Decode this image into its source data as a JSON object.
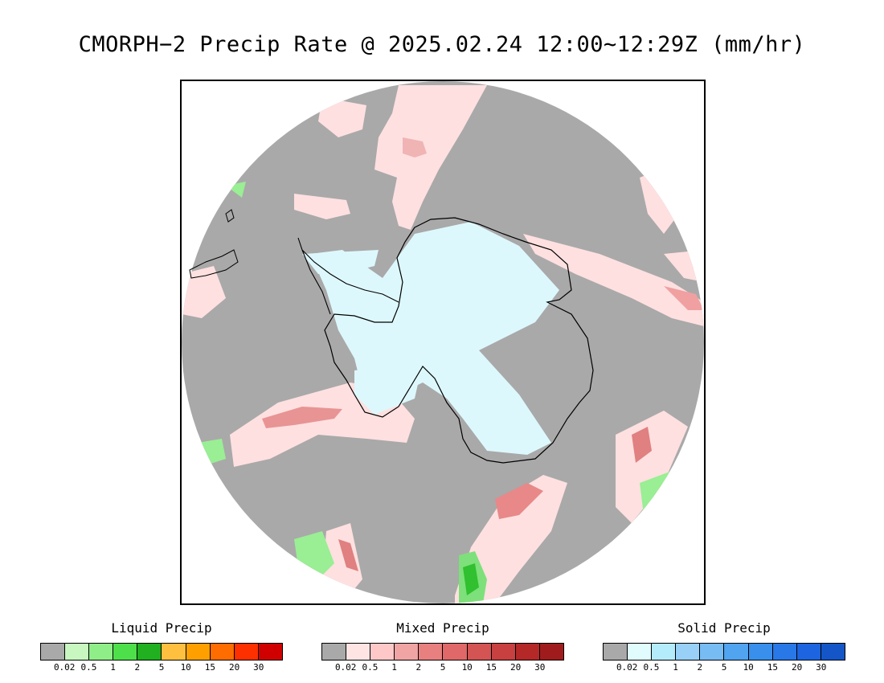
{
  "title": "CMORPH−2 Precip Rate @ 2025.02.24 12:00∼12:29Z (mm/hr)",
  "map": {
    "projection": "south polar stereographic",
    "background_color": "#a9a9a9",
    "coastline_color": "#000000"
  },
  "legends": [
    {
      "title": "Liquid Precip",
      "colors": [
        "#a9a9a9",
        "#c8f8c0",
        "#90ee88",
        "#4ee04a",
        "#20b020",
        "#ffc040",
        "#ffa000",
        "#ff6c00",
        "#ff3000",
        "#d00000"
      ],
      "ticks": [
        "0.02",
        "0.5",
        "1",
        "2",
        "5",
        "10",
        "15",
        "20",
        "30"
      ]
    },
    {
      "title": "Mixed Precip",
      "colors": [
        "#a9a9a9",
        "#ffe4e4",
        "#ffc8c8",
        "#f0a4a4",
        "#e88080",
        "#e06868",
        "#d45454",
        "#c84040",
        "#b42828",
        "#a01c1c"
      ],
      "ticks": [
        "0.02",
        "0.5",
        "1",
        "2",
        "5",
        "10",
        "15",
        "20",
        "30"
      ]
    },
    {
      "title": "Solid Precip",
      "colors": [
        "#a9a9a9",
        "#e0fcfc",
        "#b4ecfc",
        "#98d0f8",
        "#78bcf4",
        "#50a4f0",
        "#3890ec",
        "#2878e8",
        "#1c64e0",
        "#1456c8"
      ],
      "ticks": [
        "0.02",
        "0.5",
        "1",
        "2",
        "5",
        "10",
        "15",
        "20",
        "30"
      ]
    }
  ]
}
